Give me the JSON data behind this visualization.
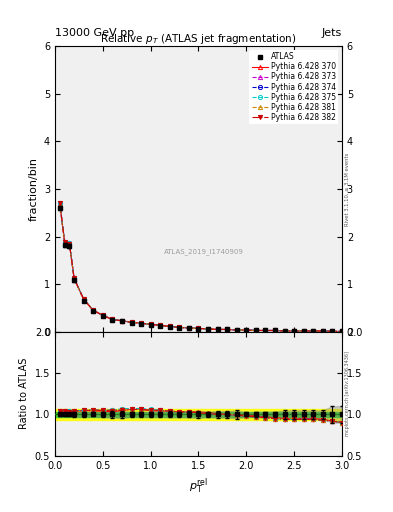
{
  "title": "Relative $p_{T}$ (ATLAS jet fragmentation)",
  "header_left": "13000 GeV pp",
  "header_right": "Jets",
  "ylabel_main": "fraction/bin",
  "ylabel_ratio": "Ratio to ATLAS",
  "watermark": "ATLAS_2019_I1740909",
  "rivet_text": "Rivet 3.1.10, ≥ 3.1M events",
  "mcplots_text": "mcplots.cern.ch [arXiv:1306.3436]",
  "xlim": [
    0,
    3.0
  ],
  "ylim_main": [
    0,
    6.0
  ],
  "ylim_ratio": [
    0.5,
    2.0
  ],
  "yticks_main": [
    0,
    1,
    2,
    3,
    4,
    5,
    6
  ],
  "yticks_ratio": [
    0.5,
    1.0,
    1.5,
    2.0
  ],
  "x_data": [
    0.05,
    0.1,
    0.15,
    0.2,
    0.3,
    0.4,
    0.5,
    0.6,
    0.7,
    0.8,
    0.9,
    1.0,
    1.1,
    1.2,
    1.3,
    1.4,
    1.5,
    1.6,
    1.7,
    1.8,
    1.9,
    2.0,
    2.1,
    2.2,
    2.3,
    2.4,
    2.5,
    2.6,
    2.7,
    2.8,
    2.9,
    3.0
  ],
  "atlas_y": [
    2.6,
    1.82,
    1.8,
    1.08,
    0.65,
    0.43,
    0.33,
    0.25,
    0.22,
    0.19,
    0.17,
    0.15,
    0.13,
    0.11,
    0.09,
    0.08,
    0.07,
    0.06,
    0.05,
    0.05,
    0.04,
    0.04,
    0.03,
    0.03,
    0.03,
    0.02,
    0.02,
    0.02,
    0.02,
    0.02,
    0.01,
    0.01
  ],
  "atlas_yerr": [
    0.05,
    0.04,
    0.04,
    0.03,
    0.02,
    0.01,
    0.01,
    0.01,
    0.01,
    0.005,
    0.005,
    0.005,
    0.004,
    0.004,
    0.003,
    0.003,
    0.003,
    0.002,
    0.002,
    0.002,
    0.002,
    0.001,
    0.001,
    0.001,
    0.001,
    0.001,
    0.001,
    0.001,
    0.001,
    0.001,
    0.001,
    0.001
  ],
  "mc_configs": [
    {
      "label": "Pythia 6.428 370",
      "color": "#ff0000",
      "linestyle": "-",
      "marker": "^",
      "fillstyle": "none"
    },
    {
      "label": "Pythia 6.428 373",
      "color": "#cc00cc",
      "linestyle": "--",
      "marker": "^",
      "fillstyle": "none"
    },
    {
      "label": "Pythia 6.428 374",
      "color": "#0000cc",
      "linestyle": "--",
      "marker": "o",
      "fillstyle": "none"
    },
    {
      "label": "Pythia 6.428 375",
      "color": "#00cccc",
      "linestyle": "--",
      "marker": "o",
      "fillstyle": "none"
    },
    {
      "label": "Pythia 6.428 381",
      "color": "#cc8800",
      "linestyle": "--",
      "marker": "^",
      "fillstyle": "none"
    },
    {
      "label": "Pythia 6.428 382",
      "color": "#cc0000",
      "linestyle": "-.",
      "marker": "v",
      "fillstyle": "full"
    }
  ],
  "mc_scale_370": [
    1.04,
    1.04,
    1.03,
    1.04,
    1.05,
    1.04,
    1.04,
    1.03,
    1.05,
    1.06,
    1.06,
    1.05,
    1.04,
    1.04,
    1.03,
    1.03,
    1.03,
    1.02,
    1.01,
    1.0,
    0.99,
    0.99,
    0.98,
    0.97,
    0.96,
    0.95,
    0.95,
    0.95,
    0.95,
    0.94,
    0.92,
    0.9
  ],
  "mc_scale_373": [
    1.03,
    1.03,
    1.03,
    1.03,
    1.04,
    1.05,
    1.05,
    1.05,
    1.06,
    1.06,
    1.06,
    1.05,
    1.04,
    1.04,
    1.03,
    1.03,
    1.02,
    1.01,
    1.0,
    1.0,
    0.99,
    0.98,
    0.97,
    0.96,
    0.95,
    0.95,
    0.95,
    0.95,
    0.94,
    0.93,
    0.92,
    0.9
  ],
  "mc_scale_374": [
    1.04,
    1.04,
    1.04,
    1.04,
    1.05,
    1.05,
    1.05,
    1.05,
    1.06,
    1.07,
    1.07,
    1.05,
    1.05,
    1.04,
    1.03,
    1.03,
    1.02,
    1.01,
    1.0,
    1.0,
    0.99,
    0.98,
    0.97,
    0.96,
    0.95,
    0.95,
    0.94,
    0.94,
    0.94,
    0.93,
    0.92,
    0.9
  ],
  "mc_scale_375": [
    1.04,
    1.04,
    1.04,
    1.04,
    1.05,
    1.05,
    1.05,
    1.05,
    1.07,
    1.07,
    1.07,
    1.06,
    1.05,
    1.04,
    1.03,
    1.03,
    1.02,
    1.01,
    1.0,
    1.0,
    0.99,
    0.98,
    0.97,
    0.96,
    0.95,
    0.94,
    0.94,
    0.94,
    0.94,
    0.93,
    0.92,
    0.9
  ],
  "mc_scale_381": [
    1.03,
    1.03,
    1.03,
    1.03,
    1.04,
    1.05,
    1.05,
    1.05,
    1.06,
    1.06,
    1.06,
    1.05,
    1.04,
    1.04,
    1.03,
    1.03,
    1.02,
    1.01,
    1.0,
    1.0,
    0.99,
    0.98,
    0.97,
    0.96,
    0.95,
    0.95,
    0.95,
    0.94,
    0.94,
    0.93,
    0.92,
    0.9
  ],
  "mc_scale_382": [
    1.04,
    1.04,
    1.03,
    1.04,
    1.05,
    1.05,
    1.05,
    1.04,
    1.05,
    1.06,
    1.06,
    1.05,
    1.05,
    1.04,
    1.03,
    1.03,
    1.02,
    1.01,
    1.0,
    1.0,
    0.99,
    0.98,
    0.97,
    0.96,
    0.95,
    0.94,
    0.94,
    0.94,
    0.94,
    0.93,
    0.92,
    0.9
  ],
  "band_green": [
    0.97,
    1.03
  ],
  "band_yellow": [
    0.93,
    1.07
  ],
  "background_color": "#f0f0f0"
}
